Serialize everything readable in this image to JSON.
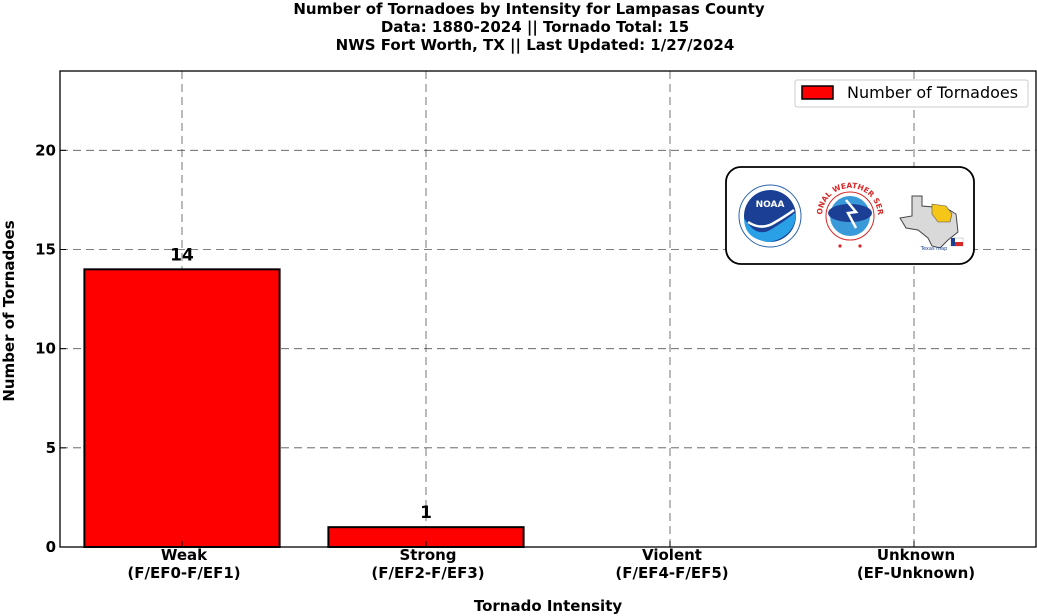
{
  "chart_data": {
    "type": "bar",
    "title": [
      "Number of Tornadoes by Intensity for Lampasas County",
      "Data: 1880-2024 || Tornado Total: 15",
      "NWS Fort Worth, TX || Last Updated: 1/27/2024"
    ],
    "categories": [
      [
        "Weak",
        "(F/EF0-F/EF1)"
      ],
      [
        "Strong",
        "(F/EF2-F/EF3)"
      ],
      [
        "Violent",
        "(F/EF4-F/EF5)"
      ],
      [
        "Unknown",
        "(EF-Unknown)"
      ]
    ],
    "series": [
      {
        "name": "Number of Tornadoes",
        "values": [
          14,
          1,
          0,
          0
        ],
        "color": "#ff0000"
      }
    ],
    "data_labels": [
      "14",
      "1",
      "",
      ""
    ],
    "xlabel": "Tornado Intensity",
    "ylabel": "Number of Tornadoes",
    "ylim": [
      0,
      24
    ],
    "yticks": [
      0,
      5,
      10,
      15,
      20
    ],
    "grid": true,
    "legend_position": "top-right",
    "logos": [
      "NOAA",
      "NATIONAL WEATHER SERVICE",
      "Texas map"
    ]
  }
}
